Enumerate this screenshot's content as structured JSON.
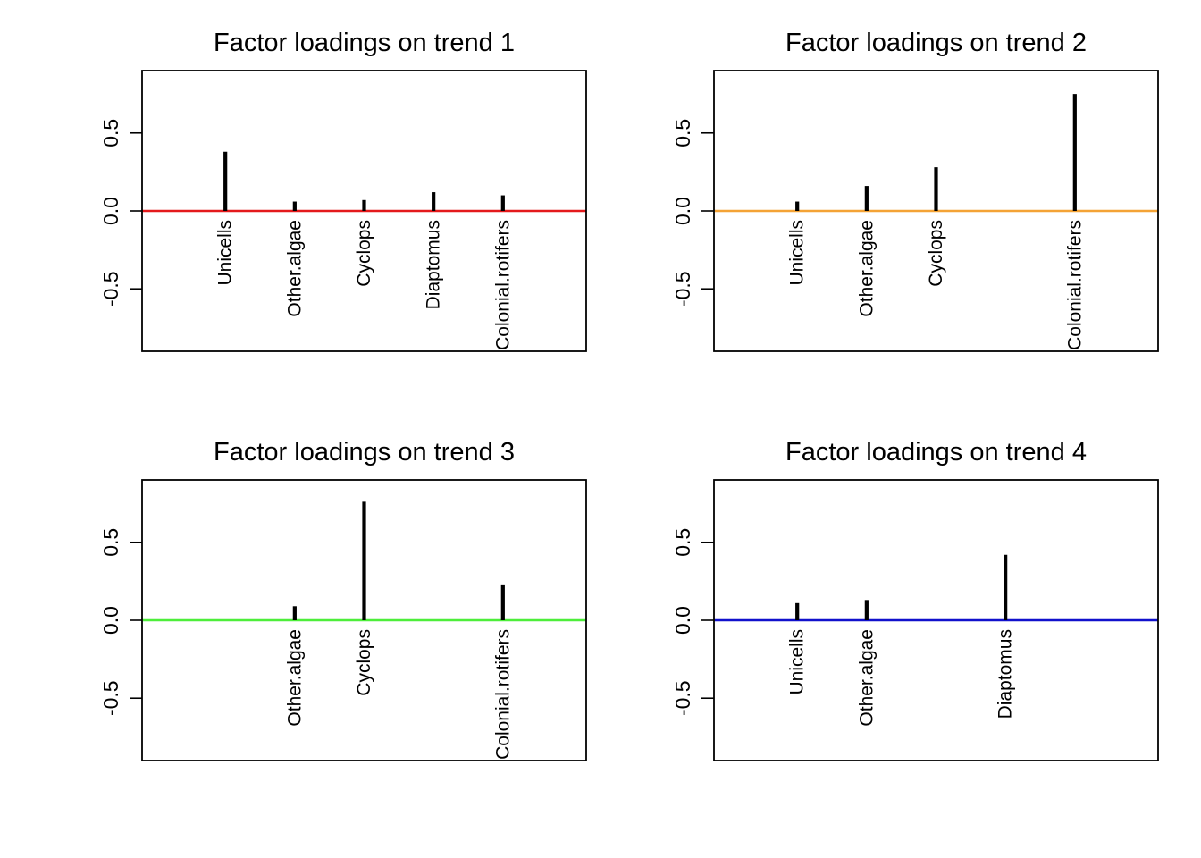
{
  "chart_data": [
    {
      "type": "bar",
      "title": "Factor loadings on trend 1",
      "ylim": [
        -0.9,
        0.9
      ],
      "yticks": [
        "-0.5",
        "0.0",
        "0.5"
      ],
      "ytick_values": [
        -0.5,
        0.0,
        0.5
      ],
      "zero_line_color": "#e41a1c",
      "categories": [
        "Unicells",
        "Other.algae",
        "Cyclops",
        "Diaptomus",
        "Colonial.rotifers"
      ],
      "values": [
        0.38,
        0.06,
        0.07,
        0.12,
        0.1
      ]
    },
    {
      "type": "bar",
      "title": "Factor loadings on trend 2",
      "ylim": [
        -0.9,
        0.9
      ],
      "yticks": [
        "-0.5",
        "0.0",
        "0.5"
      ],
      "ytick_values": [
        -0.5,
        0.0,
        0.5
      ],
      "zero_line_color": "#f4a335",
      "categories": [
        "Unicells",
        "Other.algae",
        "Cyclops",
        "",
        "Colonial.rotifers"
      ],
      "values": [
        0.06,
        0.16,
        0.28,
        0.0,
        0.75
      ]
    },
    {
      "type": "bar",
      "title": "Factor loadings on trend 3",
      "ylim": [
        -0.9,
        0.9
      ],
      "yticks": [
        "-0.5",
        "0.0",
        "0.5"
      ],
      "ytick_values": [
        -0.5,
        0.0,
        0.5
      ],
      "zero_line_color": "#4dee3a",
      "categories": [
        "",
        "Other.algae",
        "Cyclops",
        "",
        "Colonial.rotifers"
      ],
      "values": [
        0.0,
        0.09,
        0.76,
        0.0,
        0.23
      ]
    },
    {
      "type": "bar",
      "title": "Factor loadings on trend 4",
      "ylim": [
        -0.9,
        0.9
      ],
      "yticks": [
        "-0.5",
        "0.0",
        "0.5"
      ],
      "ytick_values": [
        -0.5,
        0.0,
        0.5
      ],
      "zero_line_color": "#1111cc",
      "categories": [
        "Unicells",
        "Other.algae",
        "",
        "Diaptomus",
        ""
      ],
      "values": [
        0.11,
        0.13,
        0.0,
        0.42,
        0.0
      ]
    }
  ]
}
